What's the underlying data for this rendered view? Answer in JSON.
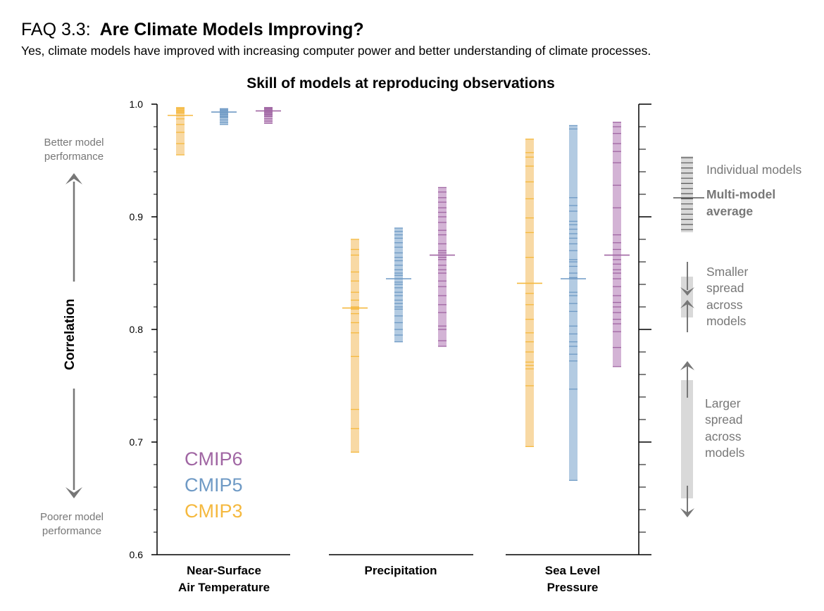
{
  "header": {
    "label": "FAQ 3.3:",
    "question": "Are Climate Models Improving?",
    "subtitle": "Yes, climate models have improved with increasing computer power and better understanding of climate processes."
  },
  "chart_data": {
    "type": "scatter",
    "title": "Skill of models at reproducing observations",
    "ylabel": "Correlation",
    "ylim": [
      0.6,
      1.0
    ],
    "yticks": [
      "0.6",
      "0.7",
      "0.8",
      "0.9",
      "1.0"
    ],
    "categories": [
      {
        "id": "tas",
        "lines": [
          "Near-Surface",
          "Air Temperature"
        ]
      },
      {
        "id": "pr",
        "lines": [
          "Precipitation"
        ]
      },
      {
        "id": "psl",
        "lines": [
          "Sea Level",
          "Pressure"
        ]
      }
    ],
    "series": [
      {
        "name": "CMIP3",
        "color": "#f5b93f",
        "bar_color": "#f8d9a4",
        "groups": [
          {
            "min": 0.955,
            "max": 0.997,
            "mean": 0.99,
            "models": [
              0.955,
              0.965,
              0.975,
              0.982,
              0.987,
              0.99,
              0.992,
              0.993,
              0.994,
              0.995,
              0.996,
              0.997
            ]
          },
          {
            "min": 0.691,
            "max": 0.88,
            "mean": 0.819,
            "models": [
              0.691,
              0.712,
              0.729,
              0.776,
              0.797,
              0.806,
              0.814,
              0.818,
              0.82,
              0.826,
              0.833,
              0.843,
              0.851,
              0.866,
              0.871,
              0.88
            ]
          },
          {
            "min": 0.696,
            "max": 0.969,
            "mean": 0.841,
            "models": [
              0.696,
              0.75,
              0.765,
              0.768,
              0.771,
              0.78,
              0.789,
              0.797,
              0.809,
              0.822,
              0.832,
              0.864,
              0.886,
              0.899,
              0.916,
              0.931,
              0.945,
              0.953,
              0.957,
              0.969
            ]
          }
        ]
      },
      {
        "name": "CMIP5",
        "color": "#6f9ac5",
        "bar_color": "#b3cbe2",
        "groups": [
          {
            "min": 0.982,
            "max": 0.996,
            "mean": 0.993,
            "models": [
              0.982,
              0.984,
              0.986,
              0.988,
              0.989,
              0.99,
              0.991,
              0.992,
              0.993,
              0.993,
              0.994,
              0.995,
              0.995,
              0.996
            ]
          },
          {
            "min": 0.789,
            "max": 0.89,
            "mean": 0.845,
            "models": [
              0.789,
              0.795,
              0.8,
              0.806,
              0.812,
              0.818,
              0.82,
              0.823,
              0.826,
              0.83,
              0.833,
              0.837,
              0.84,
              0.842,
              0.845,
              0.848,
              0.85,
              0.853,
              0.857,
              0.861,
              0.864,
              0.868,
              0.873,
              0.877,
              0.881,
              0.884,
              0.887,
              0.89
            ]
          },
          {
            "min": 0.666,
            "max": 0.981,
            "mean": 0.845,
            "models": [
              0.666,
              0.747,
              0.772,
              0.778,
              0.785,
              0.789,
              0.796,
              0.803,
              0.816,
              0.823,
              0.83,
              0.833,
              0.846,
              0.85,
              0.856,
              0.86,
              0.862,
              0.87,
              0.876,
              0.881,
              0.885,
              0.889,
              0.893,
              0.896,
              0.905,
              0.91,
              0.917,
              0.978,
              0.981
            ]
          }
        ]
      },
      {
        "name": "CMIP6",
        "color": "#a066a3",
        "bar_color": "#d3b3d5",
        "groups": [
          {
            "min": 0.983,
            "max": 0.997,
            "mean": 0.994,
            "models": [
              0.983,
              0.985,
              0.987,
              0.989,
              0.99,
              0.991,
              0.992,
              0.993,
              0.994,
              0.995,
              0.995,
              0.996,
              0.996,
              0.997,
              0.997
            ]
          },
          {
            "min": 0.785,
            "max": 0.926,
            "mean": 0.866,
            "models": [
              0.785,
              0.79,
              0.8,
              0.803,
              0.815,
              0.822,
              0.83,
              0.838,
              0.843,
              0.85,
              0.853,
              0.857,
              0.862,
              0.864,
              0.866,
              0.868,
              0.87,
              0.876,
              0.884,
              0.888,
              0.895,
              0.9,
              0.904,
              0.908,
              0.913,
              0.917,
              0.922,
              0.926
            ]
          },
          {
            "min": 0.767,
            "max": 0.984,
            "mean": 0.866,
            "models": [
              0.767,
              0.784,
              0.798,
              0.805,
              0.809,
              0.815,
              0.82,
              0.824,
              0.83,
              0.838,
              0.845,
              0.85,
              0.853,
              0.858,
              0.862,
              0.866,
              0.871,
              0.877,
              0.884,
              0.908,
              0.928,
              0.948,
              0.958,
              0.965,
              0.974,
              0.98,
              0.984
            ]
          }
        ]
      }
    ],
    "legend": {
      "placement": "bottom-left",
      "order": [
        "CMIP6",
        "CMIP5",
        "CMIP3"
      ]
    }
  },
  "annotations": {
    "better": [
      "Better model",
      "performance"
    ],
    "poorer": [
      "Poorer model",
      "performance"
    ],
    "key_individual": "Individual models",
    "key_mean": [
      "Multi-model",
      "average"
    ],
    "key_smaller": [
      "Smaller",
      "spread",
      "across",
      "models"
    ],
    "key_larger": [
      "Larger",
      "spread",
      "across",
      "models"
    ]
  },
  "colors": {
    "axis": "#000000",
    "annotation": "#777777",
    "key_bar": "#d9d9d9",
    "key_line": "#555555"
  }
}
